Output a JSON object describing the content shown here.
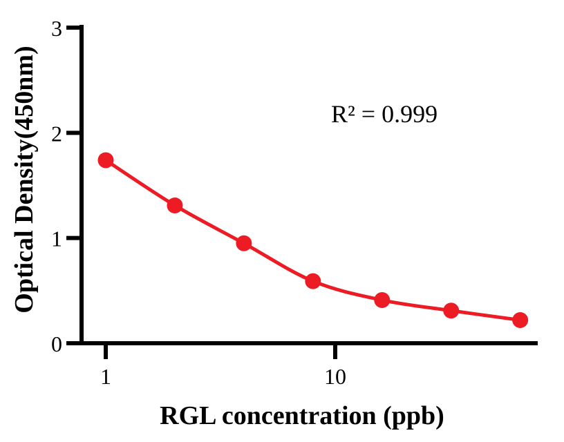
{
  "figure": {
    "background": "#FFFFFF"
  },
  "chart_data": {
    "type": "scatter",
    "subtype": "standard-curve-with-smooth-fit-line",
    "x": [
      1,
      2,
      4,
      8,
      16,
      32,
      64
    ],
    "y": [
      1.74,
      1.31,
      0.95,
      0.59,
      0.41,
      0.31,
      0.22
    ],
    "xscale": "log10",
    "xlabel": "RGL concentration (ppb)",
    "ylabel": "Optical Density(450nm)",
    "annotation": "R² = 0.999",
    "xticks": [
      1,
      10
    ],
    "xtick_labels": [
      "1",
      "10"
    ],
    "yticks": [
      0,
      1,
      2,
      3
    ],
    "ytick_labels": [
      "0",
      "1",
      "2",
      "3"
    ],
    "ylim": [
      0,
      3
    ],
    "grid": false,
    "legend": "none",
    "marker_color": "#ED1C24",
    "line_color": "#ED1C24",
    "axis_color": "#000000",
    "marker_radius": 11.5,
    "line_width": 5,
    "axis_line_width": 6
  }
}
